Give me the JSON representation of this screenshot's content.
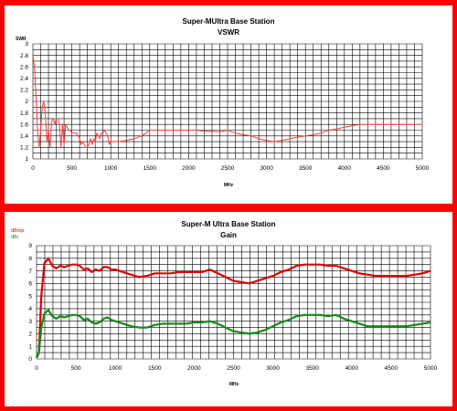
{
  "colors": {
    "frame": "#ff0000",
    "vswr_line": "#ff3a3a",
    "dbmp_line": "#e00000",
    "dbi_line": "#138a13"
  },
  "chart_data": [
    {
      "type": "line",
      "title": "Super-MUltra Base Station",
      "subtitle": "VSWR",
      "xlabel": "MHz",
      "ylabel": "SWR",
      "xlim": [
        0,
        5000
      ],
      "ylim": [
        1,
        3
      ],
      "xticks": [
        "0",
        "500",
        "1000",
        "1500",
        "2000",
        "2500",
        "3000",
        "3500",
        "4000",
        "4500",
        "5000"
      ],
      "yticks": [
        "1",
        "1.2",
        "1.4",
        "1.6",
        "1.8",
        "2",
        "2.2",
        "2.4",
        "2.6",
        "2.8",
        "3"
      ],
      "grid": true,
      "series": [
        {
          "color": "#ff3a3a",
          "x": [
            0,
            20,
            40,
            60,
            80,
            100,
            120,
            140,
            160,
            180,
            200,
            220,
            240,
            260,
            280,
            300,
            320,
            340,
            360,
            380,
            400,
            420,
            440,
            460,
            480,
            500,
            520,
            540,
            560,
            580,
            600,
            620,
            640,
            660,
            680,
            700,
            720,
            740,
            760,
            780,
            800,
            820,
            840,
            860,
            880,
            900,
            920,
            940,
            960,
            980,
            1000,
            1020,
            1040,
            1060,
            1080,
            1100,
            1200,
            1300,
            1400,
            1500,
            1600,
            1700,
            1800,
            1900,
            2000,
            2100,
            2200,
            2300,
            2400,
            2500,
            2600,
            2700,
            2800,
            2900,
            3000,
            3100,
            3200,
            3300,
            3400,
            3500,
            3600,
            3700,
            3800,
            3900,
            4000,
            4100,
            4200,
            4300,
            4400,
            4500,
            4600,
            4700,
            4800,
            4900,
            5000
          ],
          "values": [
            2.8,
            2.6,
            2.1,
            1.5,
            1.2,
            1.5,
            1.9,
            2.0,
            1.8,
            1.3,
            1.5,
            1.2,
            1.65,
            1.7,
            1.6,
            1.7,
            1.7,
            1.6,
            1.2,
            1.6,
            1.25,
            1.6,
            1.55,
            1.5,
            1.5,
            1.45,
            1.45,
            1.45,
            1.45,
            1.4,
            1.35,
            1.25,
            1.3,
            1.25,
            1.2,
            1.2,
            1.25,
            1.35,
            1.25,
            1.35,
            1.3,
            1.45,
            1.4,
            1.35,
            1.45,
            1.45,
            1.5,
            1.45,
            1.4,
            1.25,
            1.3,
            1.3,
            1.3,
            1.3,
            1.3,
            1.3,
            1.32,
            1.35,
            1.4,
            1.5,
            1.5,
            1.5,
            1.5,
            1.5,
            1.5,
            1.5,
            1.48,
            1.48,
            1.47,
            1.5,
            1.45,
            1.42,
            1.4,
            1.35,
            1.32,
            1.3,
            1.32,
            1.35,
            1.38,
            1.4,
            1.42,
            1.45,
            1.5,
            1.52,
            1.55,
            1.58,
            1.6,
            1.6,
            1.6,
            1.6,
            1.6,
            1.6,
            1.6,
            1.6,
            1.6
          ]
        }
      ]
    },
    {
      "type": "line",
      "title": "Super-M Ultra Base Station",
      "subtitle": "Gain",
      "xlabel": "MHz",
      "ylabel": "",
      "xlim": [
        0,
        5000
      ],
      "ylim": [
        0,
        9
      ],
      "xticks": [
        "0",
        "500",
        "1000",
        "1500",
        "2000",
        "2500",
        "3000",
        "3500",
        "4000",
        "4500",
        "5000"
      ],
      "yticks": [
        "0",
        "1",
        "2",
        "3",
        "4",
        "5",
        "6",
        "7",
        "8",
        "9"
      ],
      "grid": true,
      "legend_position": "top-left",
      "series": [
        {
          "name": "dBmp",
          "color": "#e00000",
          "x": [
            0,
            30,
            60,
            100,
            150,
            200,
            250,
            300,
            350,
            400,
            450,
            500,
            550,
            600,
            650,
            700,
            750,
            800,
            850,
            900,
            950,
            1000,
            1100,
            1200,
            1300,
            1400,
            1500,
            1600,
            1700,
            1800,
            1900,
            2000,
            2100,
            2200,
            2300,
            2400,
            2500,
            2600,
            2700,
            2800,
            2900,
            3000,
            3100,
            3200,
            3300,
            3400,
            3500,
            3600,
            3700,
            3800,
            3900,
            4000,
            4100,
            4200,
            4300,
            4400,
            4500,
            4600,
            4700,
            4800,
            4900,
            5000
          ],
          "values": [
            0.1,
            0.5,
            5.0,
            7.6,
            8.0,
            7.4,
            7.2,
            7.4,
            7.3,
            7.4,
            7.5,
            7.5,
            7.4,
            7.1,
            7.2,
            6.9,
            7.1,
            7.0,
            7.3,
            7.3,
            7.1,
            7.1,
            6.9,
            6.7,
            6.5,
            6.6,
            6.8,
            6.8,
            6.8,
            6.9,
            6.9,
            6.9,
            6.9,
            7.1,
            6.8,
            6.5,
            6.2,
            6.1,
            6.0,
            6.2,
            6.4,
            6.6,
            6.9,
            7.1,
            7.4,
            7.5,
            7.5,
            7.5,
            7.4,
            7.4,
            7.2,
            7.0,
            6.8,
            6.7,
            6.6,
            6.6,
            6.6,
            6.6,
            6.6,
            6.7,
            6.8,
            7.0
          ]
        },
        {
          "name": "dBi",
          "color": "#138a13",
          "x": [
            0,
            30,
            60,
            100,
            150,
            200,
            250,
            300,
            350,
            400,
            450,
            500,
            550,
            600,
            650,
            700,
            750,
            800,
            850,
            900,
            950,
            1000,
            1100,
            1200,
            1300,
            1400,
            1500,
            1600,
            1700,
            1800,
            1900,
            2000,
            2100,
            2200,
            2300,
            2400,
            2500,
            2600,
            2700,
            2800,
            2900,
            3000,
            3100,
            3200,
            3300,
            3400,
            3500,
            3600,
            3700,
            3800,
            3900,
            4000,
            4100,
            4200,
            4300,
            4400,
            4500,
            4600,
            4700,
            4800,
            4900,
            5000
          ],
          "values": [
            0.1,
            0.5,
            2.5,
            3.6,
            3.9,
            3.4,
            3.2,
            3.4,
            3.3,
            3.4,
            3.5,
            3.5,
            3.4,
            3.1,
            3.2,
            2.9,
            2.8,
            2.9,
            3.2,
            3.3,
            3.1,
            3.0,
            2.8,
            2.6,
            2.5,
            2.5,
            2.7,
            2.8,
            2.8,
            2.8,
            2.8,
            2.9,
            2.9,
            3.0,
            2.8,
            2.5,
            2.2,
            2.1,
            2.0,
            2.1,
            2.3,
            2.6,
            2.9,
            3.1,
            3.4,
            3.5,
            3.5,
            3.5,
            3.4,
            3.5,
            3.2,
            3.0,
            2.8,
            2.6,
            2.6,
            2.6,
            2.6,
            2.6,
            2.6,
            2.7,
            2.8,
            2.9
          ]
        }
      ]
    }
  ]
}
